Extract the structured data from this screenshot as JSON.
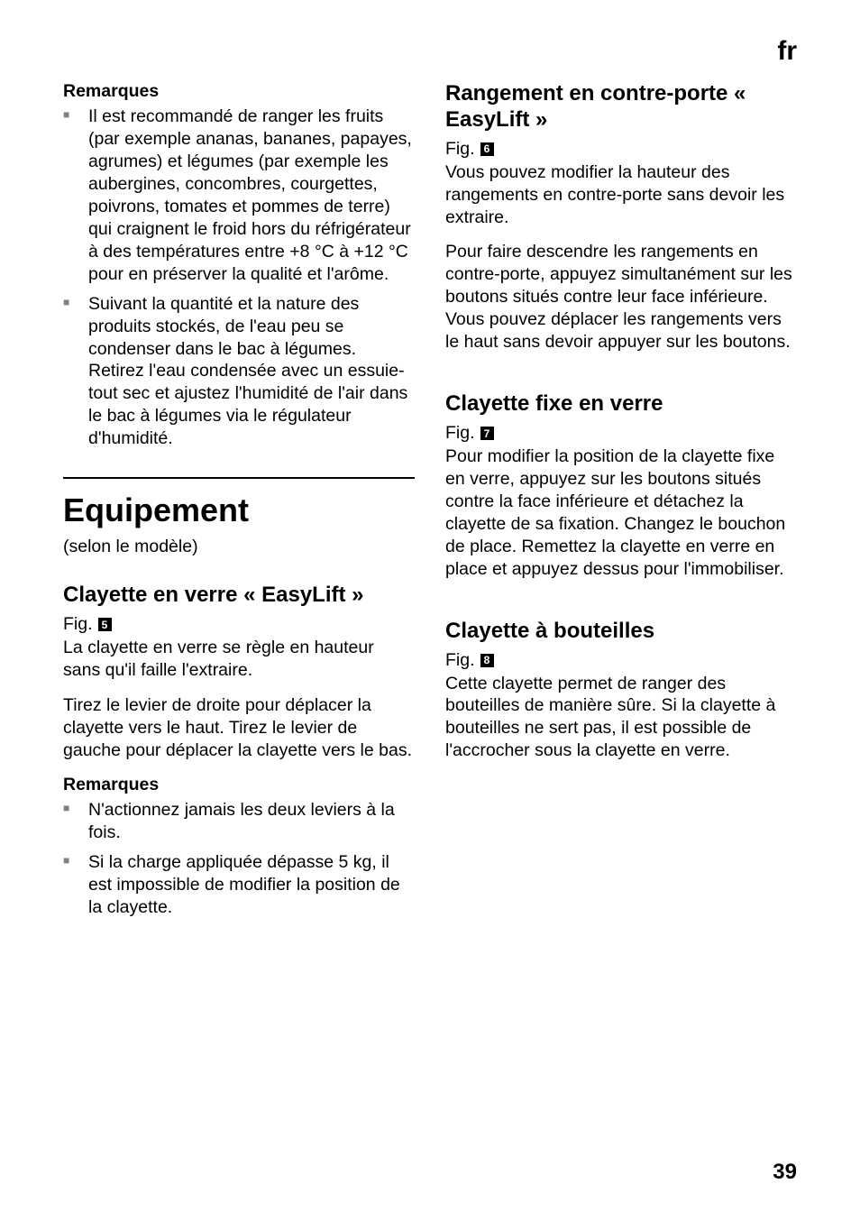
{
  "lang": "fr",
  "page_number": "39",
  "left": {
    "remarks_heading": "Remarques",
    "bullets_top": [
      "Il est recommandé de ranger les fruits (par exemple ananas, bananes, papayes, agrumes) et légumes (par exemple les aubergines, concombres, courgettes, poivrons, tomates et pommes de terre) qui craignent le froid hors du réfrigérateur à des températures entre +8 °C à +12 °C pour en préserver la qualité et l'arôme.",
      "Suivant la quantité et la nature des produits stockés, de l'eau peu se condenser dans le bac à légumes. Retirez l'eau condensée avec un essuie-tout sec et ajustez l'humidité de l'air dans le bac à légumes via le régulateur d'humidité."
    ],
    "equip_h1": "Equipement",
    "equip_note": "(selon le modèle)",
    "easylift_h2": "Clayette en verre « EasyLift »",
    "fig_label": "Fig.",
    "easylift_fig": "5",
    "easylift_p1": "La clayette en verre se règle en hauteur sans qu'il faille l'extraire.",
    "easylift_p2": "Tirez le levier de droite pour déplacer la clayette vers le haut. Tirez le levier de gauche pour déplacer la clayette vers le bas.",
    "remarks2_heading": "Remarques",
    "bullets_bottom": [
      "N'actionnez jamais les deux leviers à la fois.",
      "Si la charge appliquée dépasse 5 kg, il est impossible de modifier la position de la clayette."
    ]
  },
  "right": {
    "sec1_h2": "Rangement en contre-porte « EasyLift »",
    "sec1_fig": "6",
    "sec1_p1": "Vous pouvez modifier la hauteur des rangements en contre-porte sans devoir les extraire.",
    "sec1_p2": "Pour faire descendre les rangements en contre-porte, appuyez simultanément sur les boutons situés contre leur face inférieure. Vous pouvez déplacer les rangements vers le haut sans devoir appuyer sur les boutons.",
    "sec2_h2": "Clayette fixe en verre",
    "sec2_fig": "7",
    "sec2_p1": "Pour modifier la position de la clayette fixe en verre, appuyez sur les boutons situés contre la face inférieure et détachez la clayette de sa fixation. Changez le bouchon de place. Remettez la clayette en verre en place et appuyez dessus pour l'immobiliser.",
    "sec3_h2": "Clayette à bouteilles",
    "sec3_fig": "8",
    "sec3_p1": "Cette clayette permet de ranger des bouteilles de manière sûre. Si la clayette à bouteilles ne sert pas, il est possible de l'accrocher sous la clayette en verre."
  }
}
